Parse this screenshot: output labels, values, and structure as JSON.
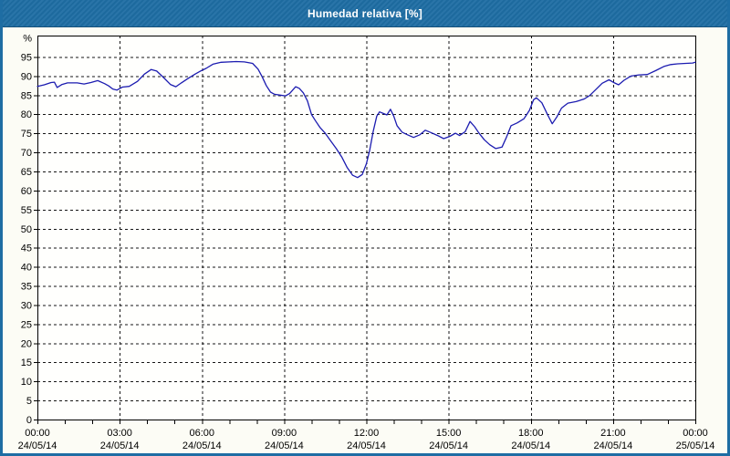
{
  "window": {
    "title": "Humedad relativa [%]",
    "colors": {
      "title_bar": "#1e6da3",
      "title_text": "#ffffff",
      "frame": "#1e6da3",
      "content_bg": "#fcfcf5",
      "plot_bg": "#fffffd",
      "grid": "#161616",
      "axis": "#000000",
      "line": "#1c1cb0",
      "label": "#000000"
    }
  },
  "chart_data": {
    "type": "line",
    "title": "Humedad relativa [%]",
    "y_unit_label": "%",
    "grid": "dashed",
    "legend": "none",
    "y_axis": {
      "range": [
        0,
        100.6
      ],
      "tick_step": 5,
      "tick_values": [
        95,
        90,
        85,
        80,
        75,
        70,
        65,
        60,
        55,
        50,
        45,
        40,
        35,
        30,
        25,
        20,
        15,
        10,
        5,
        0
      ]
    },
    "x_axis": {
      "range_hours": [
        0,
        24
      ],
      "minor_tick_interval_hours": 1,
      "major_tick_interval_hours": 3,
      "ticks": [
        {
          "hour": 0,
          "time": "00:00",
          "date": "24/05/14"
        },
        {
          "hour": 3,
          "time": "03:00",
          "date": "24/05/14"
        },
        {
          "hour": 6,
          "time": "06:00",
          "date": "24/05/14"
        },
        {
          "hour": 9,
          "time": "09:00",
          "date": "24/05/14"
        },
        {
          "hour": 12,
          "time": "12:00",
          "date": "24/05/14"
        },
        {
          "hour": 15,
          "time": "15:00",
          "date": "24/05/14"
        },
        {
          "hour": 18,
          "time": "18:00",
          "date": "24/05/14"
        },
        {
          "hour": 21,
          "time": "21:00",
          "date": "24/05/14"
        },
        {
          "hour": 24,
          "time": "00:00",
          "date": "25/05/14"
        }
      ]
    },
    "series": [
      {
        "name": "Humedad relativa [%]",
        "color": "#1c1cb0",
        "points_hour_value": [
          [
            0.0,
            87.3
          ],
          [
            0.25,
            87.7
          ],
          [
            0.5,
            88.3
          ],
          [
            0.62,
            88.4
          ],
          [
            0.72,
            87.0
          ],
          [
            0.9,
            87.8
          ],
          [
            1.1,
            88.2
          ],
          [
            1.45,
            88.2
          ],
          [
            1.7,
            87.9
          ],
          [
            1.95,
            88.3
          ],
          [
            2.2,
            88.8
          ],
          [
            2.45,
            88.0
          ],
          [
            2.6,
            87.4
          ],
          [
            2.75,
            86.6
          ],
          [
            2.9,
            86.3
          ],
          [
            3.1,
            87.1
          ],
          [
            3.35,
            87.3
          ],
          [
            3.65,
            88.6
          ],
          [
            3.9,
            90.5
          ],
          [
            4.15,
            91.7
          ],
          [
            4.35,
            91.3
          ],
          [
            4.6,
            89.6
          ],
          [
            4.85,
            87.8
          ],
          [
            5.05,
            87.2
          ],
          [
            5.25,
            88.2
          ],
          [
            5.5,
            89.4
          ],
          [
            5.75,
            90.5
          ],
          [
            5.95,
            91.3
          ],
          [
            6.15,
            92.0
          ],
          [
            6.4,
            93.1
          ],
          [
            6.7,
            93.6
          ],
          [
            7.0,
            93.7
          ],
          [
            7.25,
            93.8
          ],
          [
            7.55,
            93.7
          ],
          [
            7.85,
            93.3
          ],
          [
            8.05,
            91.8
          ],
          [
            8.2,
            89.8
          ],
          [
            8.35,
            87.5
          ],
          [
            8.5,
            85.8
          ],
          [
            8.65,
            85.2
          ],
          [
            8.85,
            85.0
          ],
          [
            9.05,
            84.8
          ],
          [
            9.2,
            85.4
          ],
          [
            9.42,
            87.2
          ],
          [
            9.55,
            86.8
          ],
          [
            9.7,
            85.6
          ],
          [
            9.85,
            83.5
          ],
          [
            10.0,
            79.9
          ],
          [
            10.15,
            78.2
          ],
          [
            10.3,
            76.6
          ],
          [
            10.5,
            75.0
          ],
          [
            10.7,
            73.0
          ],
          [
            10.9,
            71.0
          ],
          [
            11.1,
            68.8
          ],
          [
            11.3,
            66.0
          ],
          [
            11.5,
            64.0
          ],
          [
            11.68,
            63.4
          ],
          [
            11.85,
            64.2
          ],
          [
            12.0,
            67.0
          ],
          [
            12.12,
            70.5
          ],
          [
            12.25,
            75.5
          ],
          [
            12.38,
            79.5
          ],
          [
            12.48,
            80.6
          ],
          [
            12.62,
            80.2
          ],
          [
            12.75,
            79.8
          ],
          [
            12.88,
            81.3
          ],
          [
            13.0,
            79.5
          ],
          [
            13.12,
            77.0
          ],
          [
            13.3,
            75.3
          ],
          [
            13.5,
            74.6
          ],
          [
            13.72,
            73.9
          ],
          [
            13.95,
            74.6
          ],
          [
            14.15,
            75.8
          ],
          [
            14.35,
            75.2
          ],
          [
            14.6,
            74.4
          ],
          [
            14.82,
            73.6
          ],
          [
            15.05,
            74.2
          ],
          [
            15.25,
            75.0
          ],
          [
            15.4,
            74.4
          ],
          [
            15.6,
            75.4
          ],
          [
            15.78,
            78.1
          ],
          [
            15.95,
            76.7
          ],
          [
            16.1,
            75.1
          ],
          [
            16.3,
            73.3
          ],
          [
            16.5,
            72.0
          ],
          [
            16.72,
            71.0
          ],
          [
            16.95,
            71.4
          ],
          [
            17.1,
            73.8
          ],
          [
            17.28,
            77.0
          ],
          [
            17.5,
            77.7
          ],
          [
            17.75,
            78.8
          ],
          [
            17.95,
            81.0
          ],
          [
            18.1,
            83.8
          ],
          [
            18.2,
            84.3
          ],
          [
            18.4,
            83.0
          ],
          [
            18.6,
            80.0
          ],
          [
            18.78,
            77.5
          ],
          [
            18.95,
            79.3
          ],
          [
            19.12,
            81.6
          ],
          [
            19.35,
            82.9
          ],
          [
            19.65,
            83.3
          ],
          [
            19.95,
            84.0
          ],
          [
            20.15,
            84.9
          ],
          [
            20.35,
            86.3
          ],
          [
            20.6,
            88.1
          ],
          [
            20.85,
            89.0
          ],
          [
            21.05,
            88.2
          ],
          [
            21.2,
            87.7
          ],
          [
            21.4,
            88.9
          ],
          [
            21.65,
            90.0
          ],
          [
            21.95,
            90.3
          ],
          [
            22.25,
            90.4
          ],
          [
            22.55,
            91.4
          ],
          [
            22.85,
            92.5
          ],
          [
            23.1,
            93.0
          ],
          [
            23.35,
            93.2
          ],
          [
            23.65,
            93.3
          ],
          [
            23.9,
            93.4
          ],
          [
            24.0,
            93.6
          ]
        ]
      }
    ]
  }
}
